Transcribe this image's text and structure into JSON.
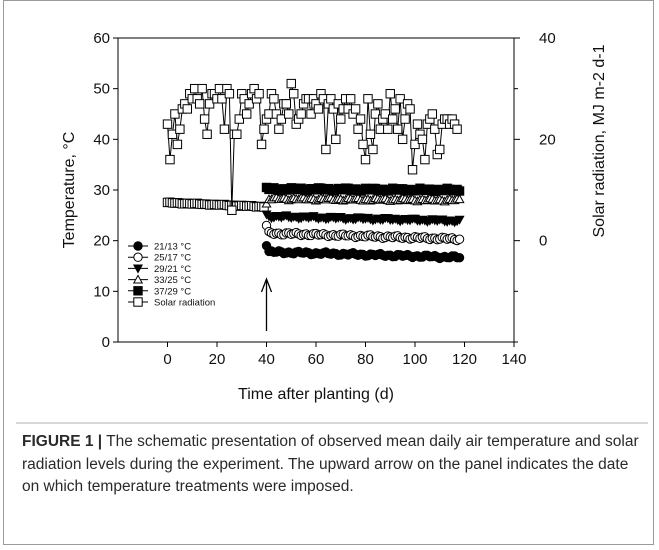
{
  "chart_data": {
    "type": "scatter",
    "xlabel": "Time after planting (d)",
    "ylabel": "Temperature, °C",
    "y2label": "Solar radiation, MJ m-2 d-1",
    "xlim": [
      -20,
      140
    ],
    "ylim": [
      0,
      60
    ],
    "y2lim": [
      -20,
      40
    ],
    "x_ticks": [
      0,
      20,
      40,
      60,
      80,
      100,
      120,
      140
    ],
    "y_ticks": [
      0,
      10,
      20,
      30,
      40,
      50,
      60
    ],
    "y2_ticks": [
      0,
      20,
      40
    ],
    "legend_placement": "lower-left",
    "annotation": "upward arrow at day 40",
    "pre_treatment": {
      "x_start": 0,
      "x_end": 39,
      "y_start": 27.5,
      "y_end": 26.7,
      "marker": "open-square"
    },
    "series": [
      {
        "name": "21/13 °C",
        "marker": "filled-circle",
        "x_start": 40,
        "x_end": 118,
        "values_start": 19.0,
        "values_settle": 17.8,
        "values_end": 16.7
      },
      {
        "name": "25/17 °C",
        "marker": "open-circle",
        "x_start": 40,
        "x_end": 118,
        "values_start": 23.0,
        "values_settle": 21.5,
        "values_end": 20.3
      },
      {
        "name": "29/21 °C",
        "marker": "filled-triangle-down",
        "x_start": 40,
        "x_end": 118,
        "values_start": 25.2,
        "values_settle": 24.8,
        "values_end": 23.9
      },
      {
        "name": "33/25 °C",
        "marker": "open-triangle-up",
        "x_start": 40,
        "x_end": 118,
        "values_start": 27.3,
        "values_settle": 28.3,
        "values_end": 28.0
      },
      {
        "name": "37/29 °C",
        "marker": "filled-square",
        "x_start": 40,
        "x_end": 118,
        "values_start": 30.5,
        "values_settle": 30.2,
        "values_end": 30.0
      },
      {
        "name": "Solar radiation",
        "axis": "right",
        "marker": "open-square",
        "x_start": 0,
        "x_end": 118,
        "values": [
          23,
          16,
          21,
          25,
          19,
          22,
          26,
          27,
          26,
          29,
          28,
          30,
          28,
          27,
          30,
          24,
          21,
          27,
          29,
          29,
          28,
          30,
          28,
          22,
          30,
          29,
          6,
          21,
          21,
          24,
          29,
          28,
          25,
          27,
          29,
          30,
          28,
          29,
          19,
          22,
          24,
          25,
          29,
          28,
          25,
          22,
          24,
          27,
          27,
          25,
          31,
          29,
          23,
          24,
          25,
          27,
          28,
          28,
          25,
          28,
          27,
          26,
          29,
          28,
          18,
          27,
          28,
          26,
          20,
          27,
          24,
          26,
          28,
          26,
          28,
          25,
          26,
          22,
          24,
          19,
          16,
          28,
          21,
          18,
          25,
          27,
          22,
          24,
          25,
          22,
          29,
          24,
          26,
          22,
          28,
          20,
          24,
          27,
          26,
          14,
          19,
          23,
          21,
          20,
          16,
          23,
          24,
          25,
          22,
          17,
          18,
          23,
          24,
          24,
          23,
          24,
          23,
          22
        ]
      }
    ]
  },
  "caption": {
    "label": "FIGURE 1 |",
    "text": " The schematic presentation of observed mean daily air temperature and solar radiation levels during the experiment. The upward arrow on the panel indicates the date on which temperature treatments were imposed."
  }
}
